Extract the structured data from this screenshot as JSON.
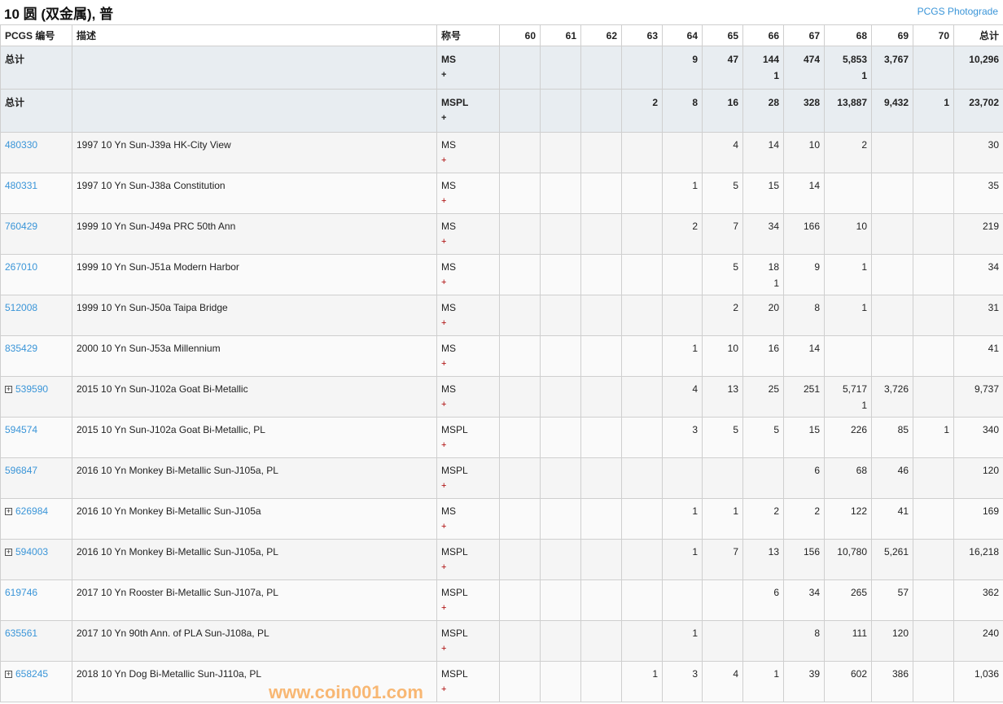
{
  "page": {
    "title": "10 圆 (双金属), 普",
    "photograde_link": "PCGS Photograde",
    "watermark": "www.coin001.com"
  },
  "colors": {
    "link": "#3a95d8",
    "total_row_bg": "#e8edf1",
    "plus_red": "#aa0000"
  },
  "headers": [
    "PCGS 编号",
    "描述",
    "称号",
    "60",
    "61",
    "62",
    "63",
    "64",
    "65",
    "66",
    "67",
    "68",
    "69",
    "70",
    "总计"
  ],
  "totals": [
    {
      "label": "总计",
      "designation": "MS",
      "plus": "+",
      "cells": [
        "",
        "",
        "",
        "",
        "9",
        "47",
        "144\n1",
        "474",
        "5,853\n1",
        "3,767",
        ""
      ],
      "total": "10,296"
    },
    {
      "label": "总计",
      "designation": "MSPL",
      "plus": "+",
      "cells": [
        "",
        "",
        "",
        "2",
        "8",
        "16",
        "28",
        "328",
        "13,887",
        "9,432",
        "1"
      ],
      "total": "23,702"
    }
  ],
  "rows": [
    {
      "code": "480330",
      "expand": false,
      "desc": "1997 10 Yn Sun-J39a HK-City View",
      "designation": "MS",
      "plus": "+",
      "cells": [
        "",
        "",
        "",
        "",
        "",
        "4",
        "14",
        "10",
        "2",
        "",
        ""
      ],
      "total": "30"
    },
    {
      "code": "480331",
      "expand": false,
      "desc": "1997 10 Yn Sun-J38a Constitution",
      "designation": "MS",
      "plus": "+",
      "cells": [
        "",
        "",
        "",
        "",
        "1",
        "5",
        "15",
        "14",
        "",
        "",
        ""
      ],
      "total": "35"
    },
    {
      "code": "760429",
      "expand": false,
      "desc": "1999 10 Yn Sun-J49a PRC 50th Ann",
      "designation": "MS",
      "plus": "+",
      "cells": [
        "",
        "",
        "",
        "",
        "2",
        "7",
        "34",
        "166",
        "10",
        "",
        ""
      ],
      "total": "219"
    },
    {
      "code": "267010",
      "expand": false,
      "desc": "1999 10 Yn Sun-J51a Modern Harbor",
      "designation": "MS",
      "plus": "+",
      "cells": [
        "",
        "",
        "",
        "",
        "",
        "5",
        "18\n1",
        "9",
        "1",
        "",
        ""
      ],
      "total": "34"
    },
    {
      "code": "512008",
      "expand": false,
      "desc": "1999 10 Yn Sun-J50a Taipa Bridge",
      "designation": "MS",
      "plus": "+",
      "cells": [
        "",
        "",
        "",
        "",
        "",
        "2",
        "20",
        "8",
        "1",
        "",
        ""
      ],
      "total": "31"
    },
    {
      "code": "835429",
      "expand": false,
      "desc": "2000 10 Yn Sun-J53a Millennium",
      "designation": "MS",
      "plus": "+",
      "cells": [
        "",
        "",
        "",
        "",
        "1",
        "10",
        "16",
        "14",
        "",
        "",
        ""
      ],
      "total": "41"
    },
    {
      "code": "539590",
      "expand": true,
      "desc": "2015 10 Yn Sun-J102a Goat Bi-Metallic",
      "designation": "MS",
      "plus": "+",
      "cells": [
        "",
        "",
        "",
        "",
        "4",
        "13",
        "25",
        "251",
        "5,717\n1",
        "3,726",
        ""
      ],
      "total": "9,737"
    },
    {
      "code": "594574",
      "expand": false,
      "desc": "2015 10 Yn Sun-J102a Goat Bi-Metallic, PL",
      "designation": "MSPL",
      "plus": "+",
      "cells": [
        "",
        "",
        "",
        "",
        "3",
        "5",
        "5",
        "15",
        "226",
        "85",
        "1"
      ],
      "total": "340"
    },
    {
      "code": "596847",
      "expand": false,
      "desc": "2016 10 Yn Monkey Bi-Metallic Sun-J105a, PL",
      "designation": "MSPL",
      "plus": "+",
      "cells": [
        "",
        "",
        "",
        "",
        "",
        "",
        "",
        "6",
        "68",
        "46",
        ""
      ],
      "total": "120"
    },
    {
      "code": "626984",
      "expand": true,
      "desc": "2016 10 Yn Monkey Bi-Metallic Sun-J105a",
      "designation": "MS",
      "plus": "+",
      "cells": [
        "",
        "",
        "",
        "",
        "1",
        "1",
        "2",
        "2",
        "122",
        "41",
        ""
      ],
      "total": "169"
    },
    {
      "code": "594003",
      "expand": true,
      "desc": "2016 10 Yn Monkey Bi-Metallic Sun-J105a, PL",
      "designation": "MSPL",
      "plus": "+",
      "cells": [
        "",
        "",
        "",
        "",
        "1",
        "7",
        "13",
        "156",
        "10,780",
        "5,261",
        ""
      ],
      "total": "16,218"
    },
    {
      "code": "619746",
      "expand": false,
      "desc": "2017 10 Yn Rooster Bi-Metallic Sun-J107a, PL",
      "designation": "MSPL",
      "plus": "+",
      "cells": [
        "",
        "",
        "",
        "",
        "",
        "",
        "6",
        "34",
        "265",
        "57",
        ""
      ],
      "total": "362"
    },
    {
      "code": "635561",
      "expand": false,
      "desc": "2017 10 Yn 90th Ann. of PLA Sun-J108a, PL",
      "designation": "MSPL",
      "plus": "+",
      "cells": [
        "",
        "",
        "",
        "",
        "1",
        "",
        "",
        "8",
        "111",
        "120",
        ""
      ],
      "total": "240"
    },
    {
      "code": "658245",
      "expand": true,
      "desc": "2018 10 Yn Dog Bi-Metallic Sun-J110a, PL",
      "designation": "MSPL",
      "plus": "+",
      "cells": [
        "",
        "",
        "",
        "1",
        "3",
        "4",
        "1",
        "39",
        "602",
        "386",
        ""
      ],
      "total": "1,036"
    }
  ]
}
